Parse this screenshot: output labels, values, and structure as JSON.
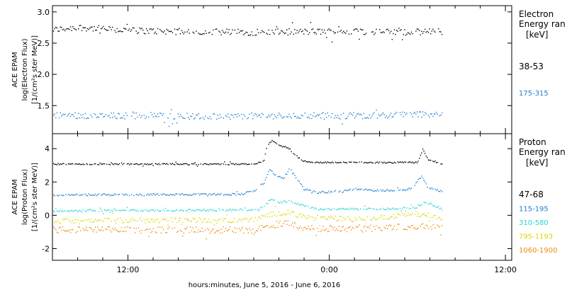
{
  "chart_data": [
    {
      "type": "scatter",
      "panel": "electron",
      "ylabel": [
        "ACE EPAM",
        "log(Electron Flux)",
        "[1/(cm²s ster MeV)]"
      ],
      "ylim": [
        1.05,
        3.1
      ],
      "yticks": [
        {
          "value": 3.0,
          "label": "3.0"
        },
        {
          "value": 2.5,
          "label": "2.5"
        },
        {
          "value": 2.0,
          "label": "2.0"
        },
        {
          "value": 1.5,
          "label": "1.5"
        }
      ],
      "legend_title": [
        "Electron",
        "Energy ran",
        "[keV]"
      ],
      "data_end_hours": 31,
      "series": [
        {
          "name": "38-53",
          "color": "#000000",
          "base": 2.69,
          "noise": 0.05,
          "anchors": [
            [
              0,
              2.72
            ],
            [
              2,
              2.76
            ],
            [
              5,
              2.72
            ],
            [
              8,
              2.7
            ],
            [
              12,
              2.69
            ],
            [
              16,
              2.68
            ],
            [
              20,
              2.69
            ],
            [
              24,
              2.7
            ],
            [
              27,
              2.68
            ],
            [
              31,
              2.69
            ]
          ]
        },
        {
          "name": "175-315",
          "color": "#1f7fd0",
          "base": 1.35,
          "noise": 0.05,
          "anchors": [
            [
              0,
              1.36
            ],
            [
              4,
              1.34
            ],
            [
              8,
              1.35
            ],
            [
              12,
              1.33
            ],
            [
              16,
              1.34
            ],
            [
              20,
              1.35
            ],
            [
              24,
              1.35
            ],
            [
              28,
              1.36
            ],
            [
              31,
              1.38
            ]
          ]
        }
      ]
    },
    {
      "type": "scatter",
      "panel": "proton",
      "ylabel": [
        "ACE EPAM",
        "log(Proton Flux)",
        "[1/(cm²s ster MeV)]"
      ],
      "ylim": [
        -2.7,
        4.9
      ],
      "yticks": [
        {
          "value": 4,
          "label": "4"
        },
        {
          "value": 2,
          "label": "2"
        },
        {
          "value": 0,
          "label": "0"
        },
        {
          "value": -2,
          "label": "-2"
        }
      ],
      "legend_title": [
        "Proton",
        "Energy ran",
        "[keV]"
      ],
      "data_end_hours": 31,
      "series": [
        {
          "name": "47-68",
          "color": "#000000",
          "noise": 0.04,
          "anchors": [
            [
              0,
              3.1
            ],
            [
              16,
              3.1
            ],
            [
              16.8,
              3.3
            ],
            [
              17.0,
              4.2
            ],
            [
              17.4,
              4.5
            ],
            [
              18.0,
              4.2
            ],
            [
              18.6,
              4.1
            ],
            [
              19.2,
              3.7
            ],
            [
              19.8,
              3.3
            ],
            [
              20.5,
              3.2
            ],
            [
              22,
              3.2
            ],
            [
              29,
              3.2
            ],
            [
              29.4,
              4.0
            ],
            [
              29.8,
              3.4
            ],
            [
              31,
              3.1
            ]
          ]
        },
        {
          "name": "115-195",
          "color": "#1f7fd0",
          "noise": 0.06,
          "anchors": [
            [
              0,
              1.25
            ],
            [
              15,
              1.3
            ],
            [
              16,
              1.5
            ],
            [
              16.8,
              2.0
            ],
            [
              17.2,
              2.8
            ],
            [
              17.6,
              2.5
            ],
            [
              18.3,
              2.2
            ],
            [
              18.8,
              2.8
            ],
            [
              19.3,
              2.3
            ],
            [
              20,
              1.6
            ],
            [
              21,
              1.4
            ],
            [
              23,
              1.45
            ],
            [
              24,
              1.6
            ],
            [
              26,
              1.5
            ],
            [
              28.5,
              1.6
            ],
            [
              29.3,
              2.4
            ],
            [
              29.8,
              1.7
            ],
            [
              31,
              1.45
            ]
          ]
        },
        {
          "name": "310-580",
          "color": "#28d4d4",
          "noise": 0.06,
          "anchors": [
            [
              0,
              0.3
            ],
            [
              16,
              0.35
            ],
            [
              16.8,
              0.55
            ],
            [
              17.3,
              1.0
            ],
            [
              18,
              0.8
            ],
            [
              18.8,
              0.9
            ],
            [
              19.5,
              0.7
            ],
            [
              21,
              0.4
            ],
            [
              26,
              0.4
            ],
            [
              29,
              0.5
            ],
            [
              29.5,
              0.8
            ],
            [
              31,
              0.4
            ]
          ]
        },
        {
          "name": "795-1193",
          "color": "#d8d800",
          "noise": 0.15,
          "anchors": [
            [
              0,
              -0.3
            ],
            [
              16,
              -0.25
            ],
            [
              17.3,
              0.1
            ],
            [
              18.8,
              0.2
            ],
            [
              20,
              -0.1
            ],
            [
              24,
              -0.2
            ],
            [
              29.5,
              0.1
            ],
            [
              31,
              -0.2
            ]
          ]
        },
        {
          "name": "1060-1900",
          "color": "#f08a10",
          "noise": 0.2,
          "anchors": [
            [
              0,
              -0.85
            ],
            [
              16,
              -0.85
            ],
            [
              17.3,
              -0.55
            ],
            [
              18.8,
              -0.45
            ],
            [
              20,
              -0.75
            ],
            [
              24,
              -0.8
            ],
            [
              29.5,
              -0.6
            ],
            [
              31,
              -0.75
            ]
          ]
        }
      ]
    }
  ],
  "x_axis": {
    "range_hours": [
      0,
      36.5
    ],
    "labels": [
      {
        "hour": 6,
        "label": "12:00"
      },
      {
        "hour": 22,
        "label": "0:00"
      },
      {
        "hour": 36,
        "label": "12:00"
      }
    ],
    "caption": "hours:minutes,  June  5, 2016 - June  6, 2016"
  }
}
